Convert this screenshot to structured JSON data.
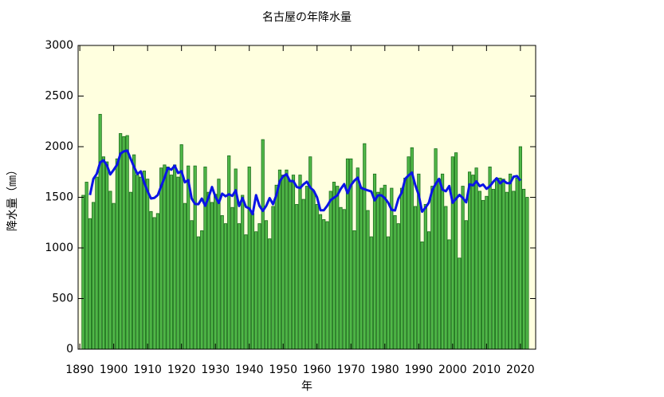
{
  "chart_data": {
    "type": "bar",
    "title": "名古屋の年降水量",
    "xlabel": "年",
    "ylabel": "降水量（㎜）",
    "x": [
      1891,
      1892,
      1893,
      1894,
      1895,
      1896,
      1897,
      1898,
      1899,
      1900,
      1901,
      1902,
      1903,
      1904,
      1905,
      1906,
      1907,
      1908,
      1909,
      1910,
      1911,
      1912,
      1913,
      1914,
      1915,
      1916,
      1917,
      1918,
      1919,
      1920,
      1921,
      1922,
      1923,
      1924,
      1925,
      1926,
      1927,
      1928,
      1929,
      1930,
      1931,
      1932,
      1933,
      1934,
      1935,
      1936,
      1937,
      1938,
      1939,
      1940,
      1941,
      1942,
      1943,
      1944,
      1945,
      1946,
      1947,
      1948,
      1949,
      1950,
      1951,
      1952,
      1953,
      1954,
      1955,
      1956,
      1957,
      1958,
      1959,
      1960,
      1961,
      1962,
      1963,
      1964,
      1965,
      1966,
      1967,
      1968,
      1969,
      1970,
      1971,
      1972,
      1973,
      1974,
      1975,
      1976,
      1977,
      1978,
      1979,
      1980,
      1981,
      1982,
      1983,
      1984,
      1985,
      1986,
      1987,
      1988,
      1989,
      1990,
      1991,
      1992,
      1993,
      1994,
      1995,
      1996,
      1997,
      1998,
      1999,
      2000,
      2001,
      2002,
      2003,
      2004,
      2005,
      2006,
      2007,
      2008,
      2009,
      2010,
      2011,
      2012,
      2013,
      2014,
      2015,
      2016,
      2017,
      2018,
      2019,
      2020,
      2021,
      2022
    ],
    "series": [
      {
        "type": "bar",
        "color": "#50b848",
        "edge": "#1c6e1c",
        "values": [
          1520,
          1650,
          1290,
          1450,
          1700,
          2320,
          1900,
          1850,
          1560,
          1440,
          1880,
          2130,
          2100,
          2110,
          1550,
          1920,
          1720,
          1700,
          1760,
          1680,
          1360,
          1300,
          1340,
          1790,
          1820,
          1800,
          1720,
          1820,
          1700,
          2020,
          1440,
          1810,
          1270,
          1810,
          1110,
          1170,
          1800,
          1550,
          1450,
          1530,
          1680,
          1320,
          1240,
          1910,
          1400,
          1780,
          1240,
          1520,
          1130,
          1800,
          1340,
          1160,
          1240,
          2070,
          1270,
          1090,
          1410,
          1620,
          1770,
          1720,
          1770,
          1660,
          1720,
          1430,
          1720,
          1480,
          1610,
          1900,
          1560,
          1430,
          1330,
          1280,
          1260,
          1560,
          1650,
          1610,
          1400,
          1380,
          1880,
          1880,
          1170,
          1790,
          1600,
          2030,
          1370,
          1110,
          1730,
          1550,
          1590,
          1620,
          1110,
          1590,
          1320,
          1240,
          1590,
          1690,
          1900,
          1990,
          1410,
          1730,
          1060,
          1430,
          1160,
          1610,
          1980,
          1680,
          1730,
          1410,
          1080,
          1900,
          1940,
          900,
          1610,
          1270,
          1750,
          1720,
          1790,
          1560,
          1470,
          1510,
          1800,
          1580,
          1690,
          1690,
          1680,
          1550,
          1730,
          1560,
          1690,
          2000,
          1580,
          1500
        ]
      },
      {
        "type": "line",
        "color": "#0a14e6",
        "values": [
          null,
          null,
          1522,
          1682,
          1732,
          1844,
          1866,
          1814,
          1726,
          1772,
          1822,
          1932,
          1954,
          1962,
          1880,
          1800,
          1730,
          1756,
          1644,
          1560,
          1488,
          1494,
          1522,
          1610,
          1694,
          1790,
          1772,
          1812,
          1740,
          1758,
          1648,
          1670,
          1488,
          1434,
          1432,
          1488,
          1416,
          1500,
          1602,
          1506,
          1444,
          1536,
          1510,
          1530,
          1514,
          1570,
          1414,
          1494,
          1406,
          1390,
          1334,
          1522,
          1416,
          1366,
          1416,
          1492,
          1432,
          1522,
          1658,
          1708,
          1728,
          1660,
          1660,
          1602,
          1592,
          1628,
          1654,
          1596,
          1566,
          1500,
          1372,
          1372,
          1416,
          1472,
          1496,
          1520,
          1584,
          1630,
          1542,
          1620,
          1664,
          1694,
          1592,
          1580,
          1568,
          1558,
          1470,
          1520,
          1520,
          1492,
          1446,
          1376,
          1370,
          1486,
          1548,
          1682,
          1716,
          1744,
          1618,
          1524,
          1358,
          1398,
          1448,
          1572,
          1632,
          1682,
          1576,
          1560,
          1612,
          1446,
          1486,
          1524,
          1494,
          1450,
          1628,
          1618,
          1658,
          1610,
          1626,
          1584,
          1610,
          1654,
          1688,
          1638,
          1666,
          1640,
          1640,
          1704,
          1710,
          1664,
          null,
          null
        ]
      }
    ],
    "xlim": [
      1889.5,
      2024.5
    ],
    "xticks": [
      1890,
      1900,
      1910,
      1920,
      1930,
      1940,
      1950,
      1960,
      1970,
      1980,
      1990,
      2000,
      2010,
      2020
    ],
    "ylim": [
      0,
      3000
    ],
    "yticks": [
      0,
      500,
      1000,
      1500,
      2000,
      2500,
      3000
    ],
    "background": "#ffffdf"
  }
}
